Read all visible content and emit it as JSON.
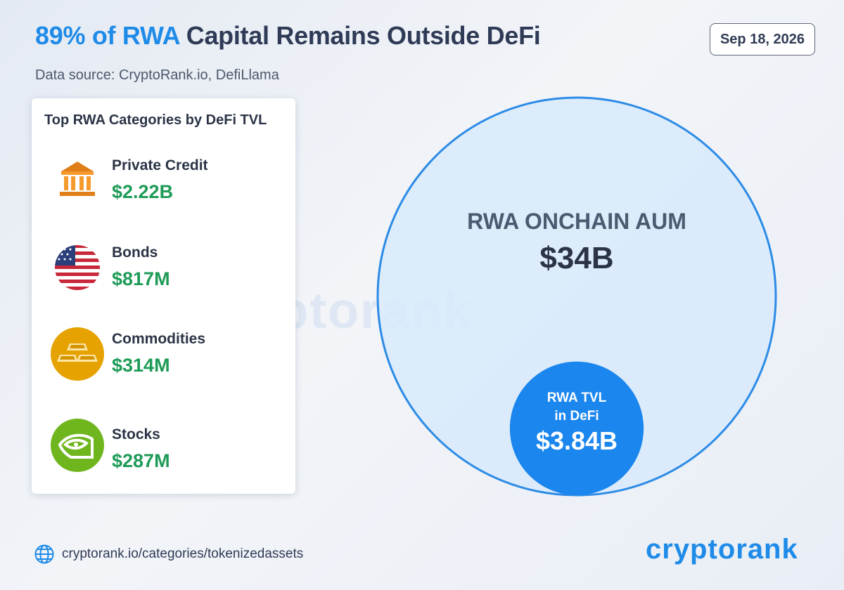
{
  "header": {
    "title_highlight": "89% of RWA",
    "title_rest": " Capital Remains Outside DeFi",
    "subtitle": "Data source: CryptoRank.io, DefiLlama",
    "date": "Sep 18, 2026"
  },
  "panel": {
    "title": "Top RWA Categories by DeFi TVL",
    "items": [
      {
        "name": "Private Credit",
        "value": "$2.22B",
        "icon": "bank-icon"
      },
      {
        "name": "Bonds",
        "value": "$817M",
        "icon": "us-flag-icon"
      },
      {
        "name": "Commodities",
        "value": "$314M",
        "icon": "gold-bars-icon"
      },
      {
        "name": "Stocks",
        "value": "$287M",
        "icon": "nvidia-logo-icon"
      }
    ]
  },
  "colors": {
    "accent": "#1f8be8",
    "value_green": "#1e9b57",
    "outer_fill": "#d8eafc",
    "outer_stroke": "#2c8be6",
    "inner_fill": "#1a86ee"
  },
  "chart_data": {
    "type": "bubble",
    "series": [
      {
        "label": "RWA ONCHAIN AUM",
        "value": 34,
        "display": "$34B"
      },
      {
        "label_lines": [
          "RWA TVL",
          "in DeFi"
        ],
        "value": 3.84,
        "display": "$3.84B"
      }
    ]
  },
  "watermark": "cryptorank",
  "footer": {
    "url": "cryptorank.io/categories/tokenizedassets",
    "brand": "cryptorank"
  }
}
